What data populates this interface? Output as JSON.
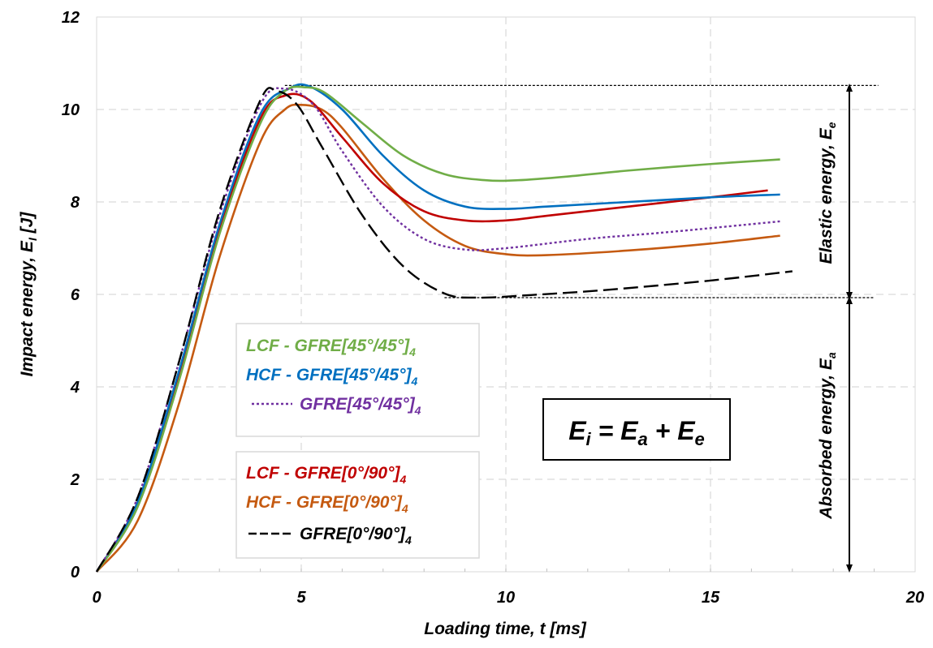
{
  "chart_data": {
    "type": "line",
    "xlabel": "Loading time, t  [ms]",
    "ylabel_main": "Impact energy, E",
    "ylabel_sub": "I",
    "ylabel_unit": " [J]",
    "xlim": [
      0,
      20
    ],
    "ylim": [
      0,
      12
    ],
    "x_ticks": [
      "0",
      "5",
      "10",
      "15",
      "20"
    ],
    "y_ticks": [
      "0",
      "2",
      "4",
      "6",
      "8",
      "10",
      "12"
    ],
    "grid": true,
    "series": [
      {
        "name": "LCF - GFRE[45°/45°]4",
        "color": "#70ad47",
        "dash": "solid",
        "x": [
          0,
          1,
          2,
          3,
          4,
          4.6,
          5.1,
          5.6,
          6.5,
          7.5,
          8.5,
          9.5,
          10.3,
          11.5,
          13,
          15,
          16.7
        ],
        "y": [
          0,
          1.4,
          4.1,
          7.3,
          9.7,
          10.4,
          10.48,
          10.35,
          9.7,
          9.0,
          8.6,
          8.47,
          8.47,
          8.55,
          8.68,
          8.82,
          8.92
        ]
      },
      {
        "name": "HCF - GFRE[45°/45°]4",
        "color": "#0070c0",
        "dash": "solid",
        "x": [
          0,
          1,
          2,
          3,
          4,
          4.7,
          5.2,
          6,
          7,
          8,
          9,
          10,
          11,
          13,
          15,
          16.7
        ],
        "y": [
          0,
          1.5,
          4.3,
          7.5,
          9.9,
          10.45,
          10.5,
          10.0,
          9.0,
          8.25,
          7.9,
          7.85,
          7.9,
          8.0,
          8.1,
          8.16
        ]
      },
      {
        "name": "GFRE[45°/45°]4",
        "color": "#7030a0",
        "dash": "3,3",
        "x": [
          0,
          1,
          2,
          3,
          4,
          4.6,
          5.3,
          6,
          7,
          8,
          9,
          10,
          12,
          14,
          16.7
        ],
        "y": [
          0,
          1.6,
          4.5,
          7.7,
          10.1,
          10.45,
          10.1,
          9.1,
          7.9,
          7.2,
          6.97,
          7.0,
          7.2,
          7.35,
          7.58
        ]
      },
      {
        "name": "LCF - GFRE[0°/90°]4",
        "color": "#c00000",
        "dash": "solid",
        "x": [
          0,
          1,
          2,
          3,
          4,
          4.6,
          5.2,
          6,
          7,
          8,
          9,
          10,
          11,
          13,
          15,
          16.4
        ],
        "y": [
          0,
          1.5,
          4.2,
          7.4,
          9.8,
          10.3,
          10.2,
          9.4,
          8.4,
          7.8,
          7.6,
          7.6,
          7.7,
          7.9,
          8.1,
          8.25
        ]
      },
      {
        "name": "HCF - GFRE[0°/90°]4",
        "color": "#c55a11",
        "dash": "solid",
        "x": [
          0,
          1,
          2,
          3,
          4,
          4.6,
          5,
          5.5,
          6,
          7,
          8,
          9,
          10,
          11,
          13,
          15,
          16.7
        ],
        "y": [
          0,
          1.1,
          3.6,
          6.8,
          9.3,
          10.0,
          10.1,
          10.0,
          9.6,
          8.5,
          7.6,
          7.05,
          6.87,
          6.85,
          6.95,
          7.1,
          7.27
        ]
      },
      {
        "name": "GFRE[0°/90°]4",
        "color": "#000000",
        "dash": "18,7",
        "x": [
          0,
          1,
          2,
          3,
          4,
          4.4,
          4.9,
          5.5,
          6.5,
          7.5,
          8.5,
          9.3,
          10.5,
          12.5,
          15,
          17
        ],
        "y": [
          0,
          1.6,
          4.5,
          7.8,
          10.2,
          10.4,
          10.1,
          9.2,
          7.7,
          6.6,
          6.02,
          5.93,
          5.98,
          6.1,
          6.3,
          6.5
        ]
      }
    ],
    "legend_group_1": [
      {
        "prefix": "LCF - ",
        "main": "GFRE[45°/45°]",
        "sub": "4",
        "color": "#70ad47",
        "line": "none"
      },
      {
        "prefix": "HCF - ",
        "main": "GFRE[45°/45°]",
        "sub": "4",
        "color": "#0070c0",
        "line": "none"
      },
      {
        "prefix": "",
        "main": "GFRE[45°/45°]",
        "sub": "4",
        "color": "#7030a0",
        "line": "dotted"
      }
    ],
    "legend_group_2": [
      {
        "prefix": "LCF - ",
        "main": "GFRE[0°/90°]",
        "sub": "4",
        "color": "#c00000",
        "line": "none"
      },
      {
        "prefix": "HCF - ",
        "main": "GFRE[0°/90°]",
        "sub": "4",
        "color": "#c55a11",
        "line": "none"
      },
      {
        "prefix": "",
        "main": "GFRE[0°/90°]",
        "sub": "4",
        "color": "#000000",
        "line": "dashed"
      }
    ],
    "equation": {
      "lhs": "E",
      "lhs_sub": "i",
      "mid": " = E",
      "mid_sub": "a",
      "plus": " + E",
      "rhs_sub": "e"
    },
    "reference_levels": {
      "max": 10.52,
      "min": 5.93
    },
    "annotations": {
      "elastic": {
        "text": "Elastic energy, E",
        "sub": "e"
      },
      "absorbed": {
        "text": "Absorbed energy, E",
        "sub": "a"
      }
    }
  }
}
